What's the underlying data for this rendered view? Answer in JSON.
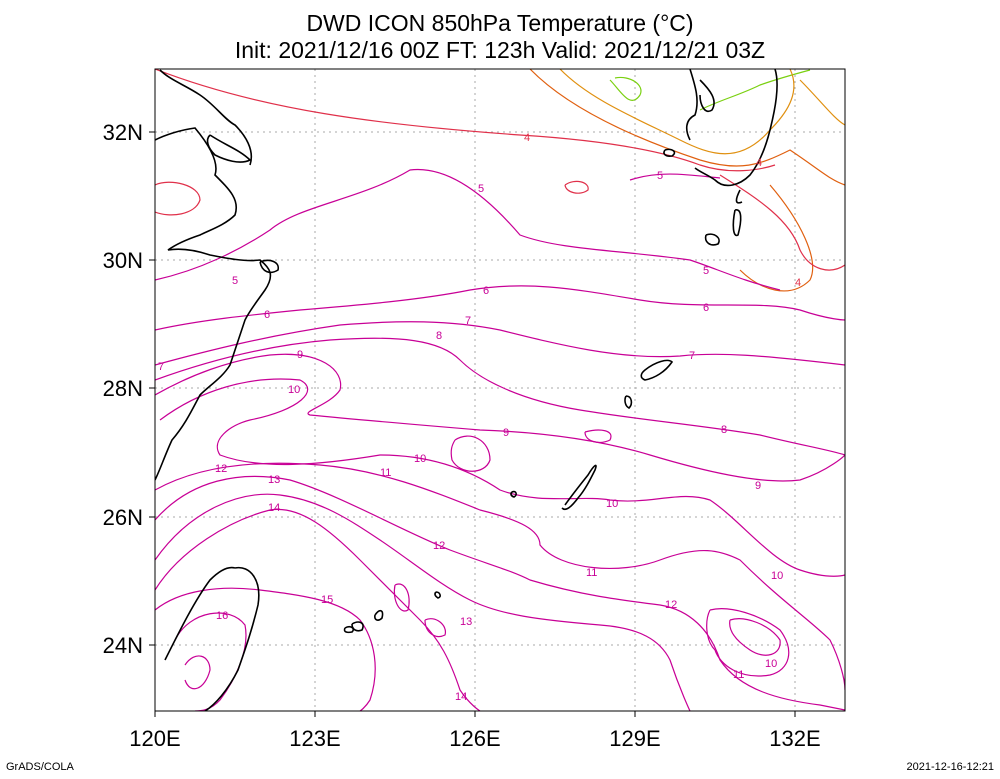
{
  "title": "DWD ICON 850hPa Temperature (°C)",
  "subtitle": "Init: 2021/12/16 00Z  FT: 123h  Valid: 2021/12/21 03Z",
  "axes": {
    "lon_ticks": [
      "120E",
      "123E",
      "126E",
      "129E",
      "132E"
    ],
    "lat_ticks": [
      "32N",
      "30N",
      "28N",
      "26N",
      "24N"
    ]
  },
  "contour_labels": [
    "4",
    "5",
    "6",
    "7",
    "8",
    "9",
    "10",
    "11",
    "12",
    "13",
    "14",
    "15",
    "16"
  ],
  "colors": {
    "warm": "#c80096",
    "mid": "#e0004a",
    "cool": "#e06010",
    "cold": "#7ad010",
    "coast": "#000000",
    "grid": "#aaaaaa"
  },
  "footer": {
    "left": "GrADS/COLA",
    "right": "2021-12-16-12:21"
  }
}
